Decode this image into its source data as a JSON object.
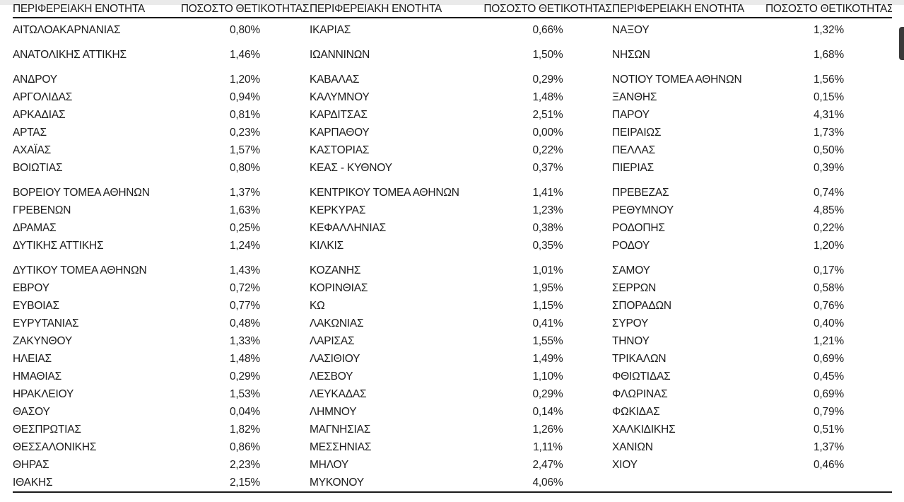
{
  "page": {
    "background_color": "#ffffff",
    "top_edge_color": "#eaeaea",
    "rule_color": "#1a1a1a",
    "scrollbar_thumb_color": "#3a3a3a"
  },
  "table": {
    "header": {
      "region_label": "ΠΕΡΙΦΕΡΕΙΑΚΗ ΕΝΟΤΗΤΑ",
      "positivity_label": "ΠΟΣΟΣΤΟ ΘΕΤΙΚΟΤΗΤΑΣ"
    },
    "group_gap_rows": [
      1,
      2,
      8,
      12
    ],
    "columns": [
      {
        "rows": [
          {
            "region": "ΑΙΤΩΛΟΑΚΑΡΝΑΝΙΑΣ",
            "positivity": "0,80%"
          },
          {
            "region": "ΑΝΑΤΟΛΙΚΗΣ ΑΤΤΙΚΗΣ",
            "positivity": "1,46%"
          },
          {
            "region": "ΑΝΔΡΟΥ",
            "positivity": "1,20%"
          },
          {
            "region": "ΑΡΓΟΛΙΔΑΣ",
            "positivity": "0,94%"
          },
          {
            "region": "ΑΡΚΑΔΙΑΣ",
            "positivity": "0,81%"
          },
          {
            "region": "ΑΡΤΑΣ",
            "positivity": "0,23%"
          },
          {
            "region": "ΑΧΑΪΑΣ",
            "positivity": "1,57%"
          },
          {
            "region": "ΒΟΙΩΤΙΑΣ",
            "positivity": "0,80%"
          },
          {
            "region": "ΒΟΡΕΙΟΥ ΤΟΜΕΑ ΑΘΗΝΩΝ",
            "positivity": "1,37%"
          },
          {
            "region": "ΓΡΕΒΕΝΩΝ",
            "positivity": "1,63%"
          },
          {
            "region": "ΔΡΑΜΑΣ",
            "positivity": "0,25%"
          },
          {
            "region": "ΔΥΤΙΚΗΣ ΑΤΤΙΚΗΣ",
            "positivity": "1,24%"
          },
          {
            "region": "ΔΥΤΙΚΟΥ ΤΟΜΕΑ ΑΘΗΝΩΝ",
            "positivity": "1,43%"
          },
          {
            "region": "ΕΒΡΟΥ",
            "positivity": "0,72%"
          },
          {
            "region": "ΕΥΒΟΙΑΣ",
            "positivity": "0,77%"
          },
          {
            "region": "ΕΥΡΥΤΑΝΙΑΣ",
            "positivity": "0,48%"
          },
          {
            "region": "ΖΑΚΥΝΘΟΥ",
            "positivity": "1,33%"
          },
          {
            "region": "ΗΛΕΙΑΣ",
            "positivity": "1,48%"
          },
          {
            "region": "ΗΜΑΘΙΑΣ",
            "positivity": "0,29%"
          },
          {
            "region": "ΗΡΑΚΛΕΙΟΥ",
            "positivity": "1,53%"
          },
          {
            "region": "ΘΑΣΟΥ",
            "positivity": "0,04%"
          },
          {
            "region": "ΘΕΣΠΡΩΤΙΑΣ",
            "positivity": "1,82%"
          },
          {
            "region": "ΘΕΣΣΑΛΟΝΙΚΗΣ",
            "positivity": "0,86%"
          },
          {
            "region": "ΘΗΡΑΣ",
            "positivity": "2,23%"
          },
          {
            "region": "ΙΘΑΚΗΣ",
            "positivity": "2,15%"
          }
        ]
      },
      {
        "rows": [
          {
            "region": "ΙΚΑΡΙΑΣ",
            "positivity": "0,66%"
          },
          {
            "region": "ΙΩΑΝΝΙΝΩΝ",
            "positivity": "1,50%"
          },
          {
            "region": "ΚΑΒΑΛΑΣ",
            "positivity": "0,29%"
          },
          {
            "region": "ΚΑΛΥΜΝΟΥ",
            "positivity": "1,48%"
          },
          {
            "region": "ΚΑΡΔΙΤΣΑΣ",
            "positivity": "2,51%"
          },
          {
            "region": "ΚΑΡΠΑΘΟΥ",
            "positivity": "0,00%"
          },
          {
            "region": "ΚΑΣΤΟΡΙΑΣ",
            "positivity": "0,22%"
          },
          {
            "region": "ΚΕΑΣ - ΚΥΘΝΟΥ",
            "positivity": "0,37%"
          },
          {
            "region": "ΚΕΝΤΡΙΚΟΥ ΤΟΜΕΑ ΑΘΗΝΩΝ",
            "positivity": "1,41%"
          },
          {
            "region": "ΚΕΡΚΥΡΑΣ",
            "positivity": "1,23%"
          },
          {
            "region": "ΚΕΦΑΛΛΗΝΙΑΣ",
            "positivity": "0,38%"
          },
          {
            "region": "ΚΙΛΚΙΣ",
            "positivity": "0,35%"
          },
          {
            "region": "ΚΟΖΑΝΗΣ",
            "positivity": "1,01%"
          },
          {
            "region": "ΚΟΡΙΝΘΙΑΣ",
            "positivity": "1,95%"
          },
          {
            "region": "ΚΩ",
            "positivity": "1,15%"
          },
          {
            "region": "ΛΑΚΩΝΙΑΣ",
            "positivity": "0,41%"
          },
          {
            "region": "ΛΑΡΙΣΑΣ",
            "positivity": "1,55%"
          },
          {
            "region": "ΛΑΣΙΘΙΟΥ",
            "positivity": "1,49%"
          },
          {
            "region": "ΛΕΣΒΟΥ",
            "positivity": "1,10%"
          },
          {
            "region": "ΛΕΥΚΑΔΑΣ",
            "positivity": "0,29%"
          },
          {
            "region": "ΛΗΜΝΟΥ",
            "positivity": "0,14%"
          },
          {
            "region": "ΜΑΓΝΗΣΙΑΣ",
            "positivity": "1,26%"
          },
          {
            "region": "ΜΕΣΣΗΝΙΑΣ",
            "positivity": "1,11%"
          },
          {
            "region": "ΜΗΛΟΥ",
            "positivity": "2,47%"
          },
          {
            "region": "ΜΥΚΟΝΟΥ",
            "positivity": "4,06%"
          }
        ]
      },
      {
        "rows": [
          {
            "region": "ΝΑΞΟΥ",
            "positivity": "1,32%"
          },
          {
            "region": "ΝΗΣΩΝ",
            "positivity": "1,68%"
          },
          {
            "region": "ΝΟΤΙΟΥ ΤΟΜΕΑ ΑΘΗΝΩΝ",
            "positivity": "1,56%"
          },
          {
            "region": "ΞΑΝΘΗΣ",
            "positivity": "0,15%"
          },
          {
            "region": "ΠΑΡΟΥ",
            "positivity": "4,31%"
          },
          {
            "region": "ΠΕΙΡΑΙΩΣ",
            "positivity": "1,73%"
          },
          {
            "region": "ΠΕΛΛΑΣ",
            "positivity": "0,50%"
          },
          {
            "region": "ΠΙΕΡΙΑΣ",
            "positivity": "0,39%"
          },
          {
            "region": "ΠΡΕΒΕΖΑΣ",
            "positivity": "0,74%"
          },
          {
            "region": "ΡΕΘΥΜΝΟΥ",
            "positivity": "4,85%"
          },
          {
            "region": "ΡΟΔΟΠΗΣ",
            "positivity": "0,22%"
          },
          {
            "region": "ΡΟΔΟΥ",
            "positivity": "1,20%"
          },
          {
            "region": "ΣΑΜΟΥ",
            "positivity": "0,17%"
          },
          {
            "region": "ΣΕΡΡΩΝ",
            "positivity": "0,58%"
          },
          {
            "region": "ΣΠΟΡΑΔΩΝ",
            "positivity": "0,76%"
          },
          {
            "region": "ΣΥΡΟΥ",
            "positivity": "0,40%"
          },
          {
            "region": "ΤΗΝΟΥ",
            "positivity": "1,21%"
          },
          {
            "region": "ΤΡΙΚΑΛΩΝ",
            "positivity": "0,69%"
          },
          {
            "region": "ΦΘΙΩΤΙΔΑΣ",
            "positivity": "0,45%"
          },
          {
            "region": "ΦΛΩΡΙΝΑΣ",
            "positivity": "0,69%"
          },
          {
            "region": "ΦΩΚΙΔΑΣ",
            "positivity": "0,79%"
          },
          {
            "region": "ΧΑΛΚΙΔΙΚΗΣ",
            "positivity": "0,51%"
          },
          {
            "region": "ΧΑΝΙΩΝ",
            "positivity": "1,37%"
          },
          {
            "region": "ΧΙΟΥ",
            "positivity": "0,46%"
          },
          {
            "region": "",
            "positivity": ""
          }
        ]
      }
    ]
  }
}
